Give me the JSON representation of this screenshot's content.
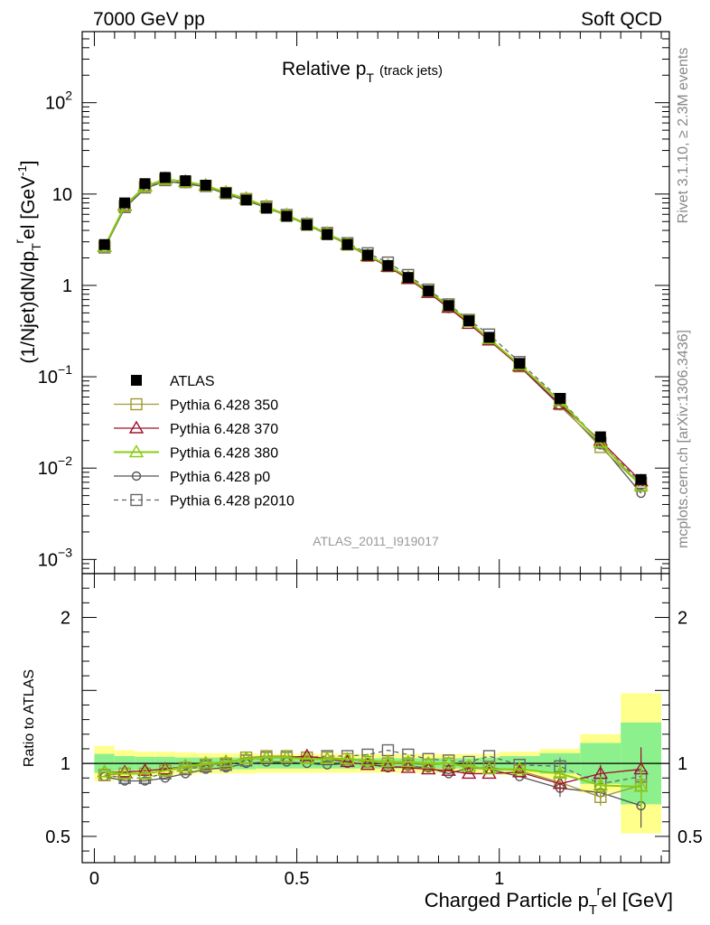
{
  "header": {
    "energy_label": "7000 GeV pp",
    "process_label": "Soft QCD"
  },
  "side_text": {
    "rivet": "Rivet 3.1.10, ≥ 2.3M events",
    "source": "mcplots.cern.ch [arXiv:1306.3436]"
  },
  "chart_data": [
    {
      "type": "line",
      "title": "Relative p_T (track jets)",
      "title_main": "Relative p",
      "title_sub": "T",
      "title_note": "(track jets)",
      "watermark": "ATLAS_2011_I919017",
      "ylabel": "(1/Njet)dN/dp_T^rel [GeV^-1]",
      "ylabel_parts": [
        "(1/Njet)dN/dp",
        "T",
        "r",
        "el [GeV",
        "-1",
        "]"
      ],
      "yscale": "log",
      "ylim": [
        0.0007,
        600
      ],
      "yticks": [
        {
          "value": 0.001,
          "base": "10",
          "exp": "−3"
        },
        {
          "value": 0.01,
          "base": "10",
          "exp": "−2"
        },
        {
          "value": 0.1,
          "base": "10",
          "exp": "−1"
        },
        {
          "value": 1,
          "base": "1",
          "exp": ""
        },
        {
          "value": 10,
          "base": "10",
          "exp": ""
        },
        {
          "value": 100,
          "base": "10",
          "exp": "2"
        }
      ],
      "xlim": [
        -0.03,
        1.42
      ],
      "x": [
        0.025,
        0.075,
        0.125,
        0.175,
        0.225,
        0.275,
        0.325,
        0.375,
        0.425,
        0.475,
        0.525,
        0.575,
        0.625,
        0.675,
        0.725,
        0.775,
        0.825,
        0.875,
        0.925,
        0.975,
        1.05,
        1.15,
        1.25,
        1.35
      ],
      "legend_position": "center-left",
      "series": [
        {
          "name": "ATLAS",
          "color": "#000000",
          "marker": "filled-square",
          "line": "none",
          "values": [
            2.8,
            8.0,
            13.0,
            15.2,
            14.0,
            12.5,
            10.3,
            8.6,
            7.0,
            5.7,
            4.6,
            3.6,
            2.8,
            2.15,
            1.65,
            1.22,
            0.87,
            0.6,
            0.41,
            0.27,
            0.14,
            0.058,
            0.022,
            0.0075
          ]
        },
        {
          "name": "Pythia 6.428 350",
          "color": "#a09a30",
          "marker": "open-square",
          "line": "solid",
          "values": [
            2.65,
            7.4,
            12.0,
            14.5,
            13.6,
            12.3,
            10.3,
            8.8,
            7.2,
            5.8,
            4.6,
            3.65,
            2.8,
            2.1,
            1.62,
            1.2,
            0.86,
            0.6,
            0.41,
            0.26,
            0.13,
            0.05,
            0.017,
            0.0064
          ]
        },
        {
          "name": "Pythia 6.428 370",
          "color": "#a01030",
          "marker": "open-triangle",
          "line": "solid",
          "values": [
            2.65,
            7.5,
            12.2,
            14.6,
            13.7,
            12.4,
            10.4,
            8.9,
            7.3,
            5.9,
            4.7,
            3.7,
            2.8,
            2.1,
            1.6,
            1.18,
            0.83,
            0.57,
            0.38,
            0.25,
            0.13,
            0.05,
            0.02,
            0.0072
          ]
        },
        {
          "name": "Pythia 6.428 380",
          "color": "#88cc10",
          "marker": "open-triangle",
          "line": "solid",
          "values": [
            2.65,
            7.4,
            12.1,
            14.5,
            13.7,
            12.4,
            10.4,
            8.9,
            7.3,
            5.9,
            4.7,
            3.7,
            2.85,
            2.15,
            1.65,
            1.23,
            0.86,
            0.6,
            0.4,
            0.26,
            0.135,
            0.054,
            0.019,
            0.0064
          ]
        },
        {
          "name": "Pythia 6.428 p0",
          "color": "#555555",
          "marker": "open-circle",
          "line": "solid",
          "values": [
            2.55,
            7.0,
            11.5,
            13.8,
            13.0,
            12.0,
            10.0,
            8.5,
            7.1,
            5.8,
            4.6,
            3.6,
            2.8,
            2.15,
            1.6,
            1.2,
            0.85,
            0.56,
            0.4,
            0.26,
            0.13,
            0.048,
            0.018,
            0.0053
          ]
        },
        {
          "name": "Pythia 6.428 p2010",
          "color": "#666666",
          "marker": "open-square",
          "line": "dashed",
          "values": [
            2.6,
            7.2,
            11.8,
            14.2,
            13.5,
            12.2,
            10.2,
            8.8,
            7.3,
            5.9,
            4.7,
            3.75,
            2.9,
            2.25,
            1.78,
            1.3,
            0.9,
            0.62,
            0.42,
            0.29,
            0.145,
            0.057,
            0.019,
            0.0069
          ]
        }
      ]
    },
    {
      "type": "line",
      "title": "Ratio to ATLAS",
      "ylabel": "Ratio to ATLAS",
      "xlabel": "Charged Particle p_T^rel [GeV]",
      "xlabel_parts": [
        "Charged Particle p",
        "T",
        "r",
        "el [GeV]"
      ],
      "xlim": [
        -0.03,
        1.42
      ],
      "ylim": [
        0.32,
        2.3
      ],
      "xticks": [
        {
          "value": 0,
          "label": "0"
        },
        {
          "value": 0.5,
          "label": "0.5"
        },
        {
          "value": 1,
          "label": "1"
        }
      ],
      "yticks": [
        {
          "value": 0.5,
          "label": "0.5"
        },
        {
          "value": 1,
          "label": "1"
        },
        {
          "value": 2,
          "label": "2"
        }
      ],
      "band_bin_edges": [
        0.0,
        0.05,
        0.1,
        0.15,
        0.2,
        0.25,
        0.3,
        0.35,
        0.4,
        0.45,
        0.5,
        0.55,
        0.6,
        0.65,
        0.7,
        0.75,
        0.8,
        0.85,
        0.9,
        0.95,
        1.0,
        1.1,
        1.2,
        1.3,
        1.4
      ],
      "band_stat": [
        0.065,
        0.05,
        0.045,
        0.045,
        0.04,
        0.04,
        0.04,
        0.04,
        0.035,
        0.035,
        0.035,
        0.035,
        0.035,
        0.035,
        0.035,
        0.035,
        0.035,
        0.035,
        0.035,
        0.04,
        0.05,
        0.07,
        0.14,
        0.28
      ],
      "band_total": [
        0.12,
        0.09,
        0.08,
        0.08,
        0.075,
        0.07,
        0.07,
        0.07,
        0.065,
        0.065,
        0.065,
        0.065,
        0.065,
        0.065,
        0.065,
        0.065,
        0.065,
        0.065,
        0.065,
        0.065,
        0.08,
        0.1,
        0.2,
        0.48
      ],
      "band_colors": {
        "stat": "#8cf08c",
        "total": "#ffff8c"
      },
      "reference_line": 1,
      "x": [
        0.025,
        0.075,
        0.125,
        0.175,
        0.225,
        0.275,
        0.325,
        0.375,
        0.425,
        0.475,
        0.525,
        0.575,
        0.625,
        0.675,
        0.725,
        0.775,
        0.825,
        0.875,
        0.925,
        0.975,
        1.05,
        1.15,
        1.25,
        1.35
      ],
      "series": [
        {
          "name": "Pythia 6.428 350",
          "color": "#a09a30",
          "marker": "open-square",
          "line": "solid",
          "values": [
            0.92,
            0.93,
            0.93,
            0.95,
            0.97,
            0.99,
            1.0,
            1.04,
            1.05,
            1.05,
            1.04,
            1.04,
            1.03,
            1.01,
            1.0,
            1.0,
            0.99,
            1.0,
            0.97,
            0.97,
            0.95,
            0.87,
            0.77,
            0.85
          ]
        },
        {
          "name": "Pythia 6.428 370",
          "color": "#a01030",
          "marker": "open-triangle",
          "line": "solid",
          "values": [
            0.94,
            0.94,
            0.95,
            0.96,
            0.98,
            1.0,
            1.01,
            1.03,
            1.04,
            1.04,
            1.05,
            1.03,
            1.01,
            0.99,
            0.98,
            0.97,
            0.96,
            0.95,
            0.93,
            0.93,
            0.94,
            0.86,
            0.93,
            0.96
          ]
        },
        {
          "name": "Pythia 6.428 380",
          "color": "#88cc10",
          "marker": "open-triangle",
          "line": "solid",
          "values": [
            0.94,
            0.93,
            0.93,
            0.95,
            0.98,
            1.0,
            1.01,
            1.03,
            1.04,
            1.04,
            1.03,
            1.03,
            1.03,
            1.02,
            1.01,
            1.01,
            1.0,
            1.0,
            0.98,
            0.96,
            0.96,
            0.93,
            0.85,
            0.84
          ]
        },
        {
          "name": "Pythia 6.428 p0",
          "color": "#555555",
          "marker": "open-circle",
          "line": "solid",
          "values": [
            0.91,
            0.88,
            0.88,
            0.9,
            0.93,
            0.96,
            0.97,
            1.0,
            1.01,
            1.01,
            1.0,
            0.99,
            1.0,
            1.0,
            0.97,
            0.98,
            0.97,
            0.93,
            0.97,
            0.96,
            0.91,
            0.83,
            0.8,
            0.71
          ]
        },
        {
          "name": "Pythia 6.428 p2010",
          "color": "#666666",
          "marker": "open-square",
          "line": "dashed",
          "values": [
            0.92,
            0.9,
            0.9,
            0.93,
            0.96,
            0.98,
            0.99,
            1.02,
            1.04,
            1.04,
            1.04,
            1.05,
            1.05,
            1.06,
            1.09,
            1.06,
            1.03,
            1.02,
            1.01,
            1.05,
            0.99,
            0.98,
            0.86,
            0.91
          ]
        }
      ]
    }
  ]
}
